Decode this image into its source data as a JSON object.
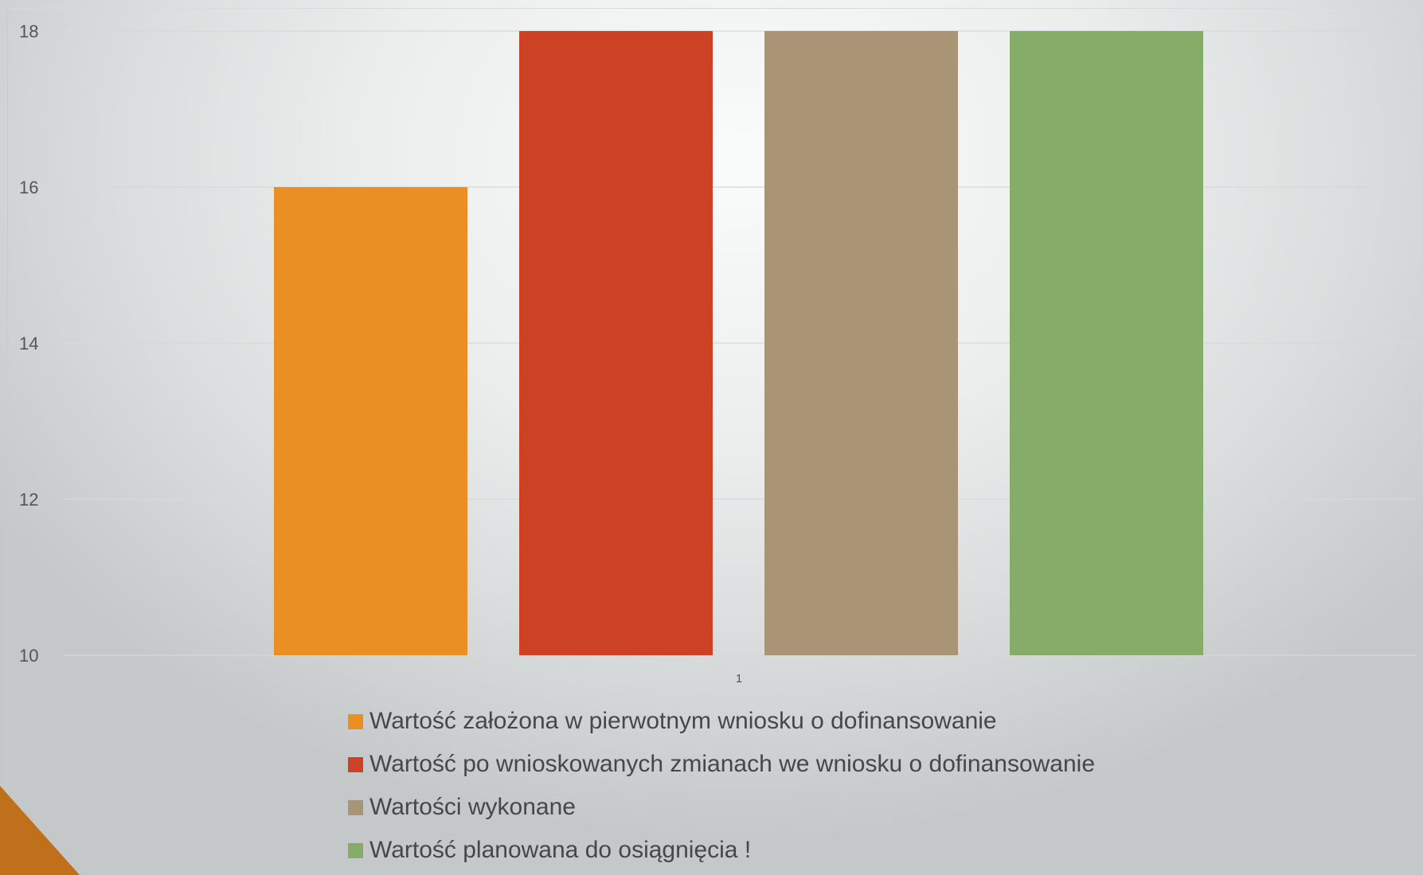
{
  "chart_data": {
    "type": "bar",
    "categories": [
      "1"
    ],
    "series": [
      {
        "name": "Wartość założona w pierwotnym wniosku o dofinansowanie",
        "values": [
          16
        ],
        "color": "#EA8F24"
      },
      {
        "name": "Wartość po wnioskowanych zmianach we wniosku o dofinansowanie",
        "values": [
          18
        ],
        "color": "#CD4224"
      },
      {
        "name": "Wartości wykonane",
        "values": [
          18
        ],
        "color": "#A99475"
      },
      {
        "name": "Wartość planowana do osiągnięcia !",
        "values": [
          18
        ],
        "color": "#85AC69"
      }
    ],
    "yticks": [
      "10",
      "12",
      "14",
      "16",
      "18"
    ],
    "ylim": [
      10,
      18
    ],
    "grid": true,
    "legend_position": "bottom",
    "title": "",
    "xlabel": "",
    "ylabel": ""
  },
  "colors": {
    "corner_accent": "#C0701A",
    "gridline": "#d6d9d9",
    "axis_text": "#555555",
    "legend_text": "#474747"
  }
}
